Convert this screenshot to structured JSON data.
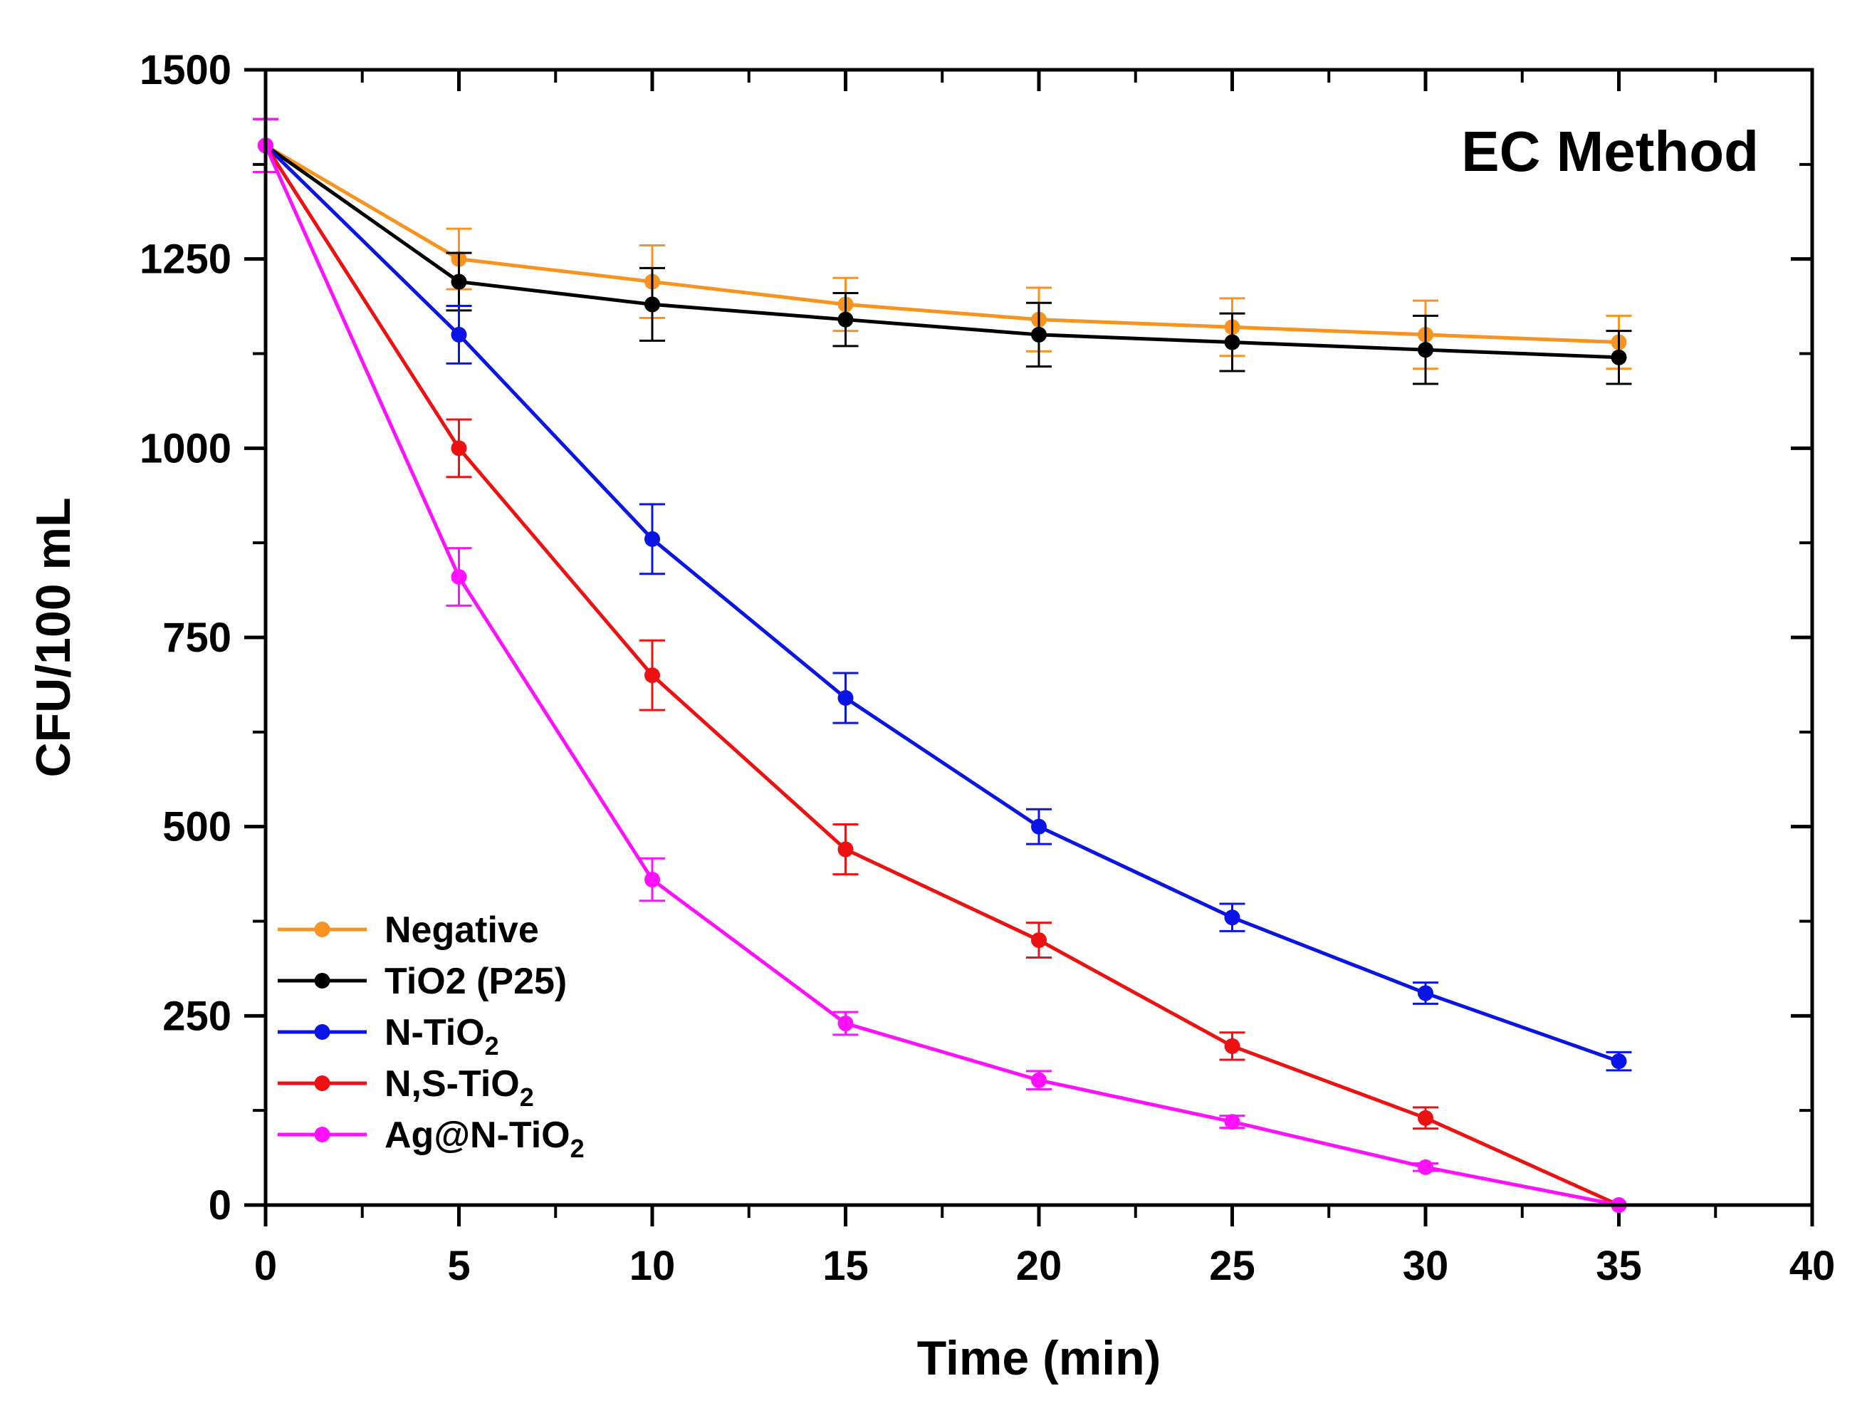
{
  "chart_data": {
    "type": "line",
    "title": "EC Method",
    "xlabel": "Time (min)",
    "ylabel": "CFU/100 mL",
    "xlim": [
      0,
      40
    ],
    "ylim": [
      0,
      1500
    ],
    "x_ticks": [
      0,
      5,
      10,
      15,
      20,
      25,
      30,
      35,
      40
    ],
    "y_ticks": [
      0,
      250,
      500,
      750,
      1000,
      1250,
      1500
    ],
    "x_tick_labels": [
      "0",
      "5",
      "10",
      "15",
      "20",
      "25",
      "30",
      "35",
      "40"
    ],
    "y_tick_labels": [
      "0",
      "250",
      "500",
      "750",
      "1000",
      "1250",
      "1500"
    ],
    "grid": false,
    "legend_position": "bottom-left",
    "x": [
      0,
      5,
      10,
      15,
      20,
      25,
      30,
      35
    ],
    "series": [
      {
        "name": "Negative",
        "label_main": "Negative",
        "label_sub": "",
        "color": "#f7931e",
        "values": [
          1400,
          1250,
          1220,
          1190,
          1170,
          1160,
          1150,
          1140
        ],
        "errors": [
          35,
          40,
          48,
          35,
          42,
          38,
          45,
          35
        ]
      },
      {
        "name": "TiO2 (P25)",
        "label_main": "TiO2 (P25)",
        "label_sub": "",
        "color": "#000000",
        "values": [
          1400,
          1220,
          1190,
          1170,
          1150,
          1140,
          1130,
          1120
        ],
        "errors": [
          35,
          38,
          48,
          35,
          42,
          38,
          45,
          35
        ]
      },
      {
        "name": "N-TiO2",
        "label_main": "N-TiO",
        "label_sub": "2",
        "color": "#0a14e6",
        "values": [
          1400,
          1150,
          880,
          670,
          500,
          380,
          280,
          190
        ],
        "errors": [
          35,
          38,
          46,
          33,
          23,
          18,
          14,
          12
        ]
      },
      {
        "name": "N,S-TiO2",
        "label_main": "N,S-TiO",
        "label_sub": "2",
        "color": "#ee1111",
        "values": [
          1400,
          1000,
          700,
          470,
          350,
          210,
          115,
          0
        ],
        "errors": [
          35,
          38,
          46,
          33,
          23,
          18,
          14,
          0
        ]
      },
      {
        "name": "Ag@N-TiO2",
        "label_main": "Ag@N-TiO",
        "label_sub": "2",
        "color": "#ff11ff",
        "values": [
          1400,
          830,
          430,
          240,
          165,
          110,
          50,
          0
        ],
        "errors": [
          35,
          38,
          28,
          15,
          12,
          8,
          5,
          0
        ]
      }
    ]
  }
}
